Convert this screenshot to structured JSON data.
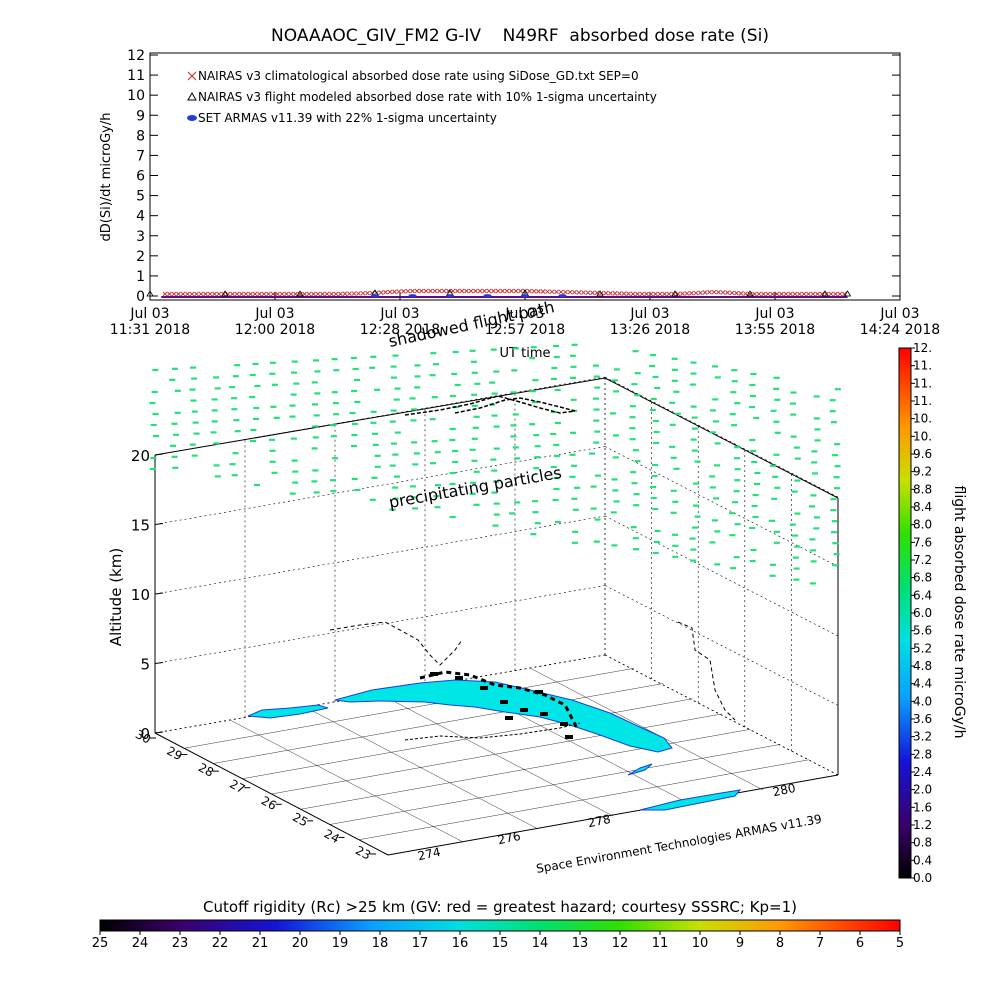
{
  "chart_data": [
    {
      "type": "scatter",
      "title": "NOAAAOC_GIV_FM2 G-IV    N49RF  absorbed dose rate (Si)",
      "ylabel": "dD(Si)/dt microGy/h",
      "xlabel": "UT time",
      "ylim": [
        0,
        12
      ],
      "yticks": [
        "0",
        "1",
        "2",
        "3",
        "4",
        "5",
        "6",
        "7",
        "8",
        "9",
        "10",
        "11",
        "12"
      ],
      "xticks": [
        {
          "top": "Jul 03",
          "bottom": "11:31 2018"
        },
        {
          "top": "Jul 03",
          "bottom": "12:00 2018"
        },
        {
          "top": "Jul 03",
          "bottom": "12:28 2018"
        },
        {
          "top": "Jul 03",
          "bottom": "12:57 2018"
        },
        {
          "top": "Jul 03",
          "bottom": "13:26 2018"
        },
        {
          "top": "Jul 03",
          "bottom": "13:55 2018"
        },
        {
          "top": "Jul 03",
          "bottom": "14:24 2018"
        }
      ],
      "legend": [
        {
          "label": "NAIRAS v3 climatological absorbed dose rate using SiDose_GD.txt SEP=0",
          "symbol": "x",
          "color": "#cc3333"
        },
        {
          "label": "NAIRAS v3 flight modeled absorbed dose rate with 10% 1-sigma uncertainty",
          "symbol": "triangle",
          "color": "#000000"
        },
        {
          "label": "SET ARMAS v11.39 with 22% 1-sigma uncertainty",
          "symbol": "dot",
          "color": "#1f3fd8"
        }
      ],
      "legend_position": "top-left",
      "series": [
        {
          "name": "NAIRAS v3 climatological absorbed dose rate using SiDose_GD.txt SEP=0",
          "x": [
            0.0,
            0.05,
            0.1,
            0.15,
            0.2,
            0.25,
            0.3,
            0.32,
            0.35,
            0.4,
            0.45,
            0.5,
            0.55,
            0.6,
            0.65,
            0.7,
            0.73,
            0.75,
            0.78,
            0.8,
            0.85,
            0.9,
            0.93
          ],
          "values": [
            0.1,
            0.1,
            0.1,
            0.1,
            0.1,
            0.1,
            0.15,
            0.2,
            0.25,
            0.25,
            0.25,
            0.25,
            0.2,
            0.15,
            0.1,
            0.1,
            0.15,
            0.2,
            0.15,
            0.1,
            0.1,
            0.1,
            0.1
          ]
        },
        {
          "name": "NAIRAS v3 flight modeled absorbed dose rate with 10% 1-sigma uncertainty",
          "x": [
            0.0,
            0.1,
            0.2,
            0.3,
            0.4,
            0.5,
            0.6,
            0.7,
            0.8,
            0.9,
            0.93
          ],
          "values": [
            0.05,
            0.05,
            0.05,
            0.1,
            0.1,
            0.1,
            0.05,
            0.05,
            0.05,
            0.05,
            0.05
          ]
        },
        {
          "name": "SET ARMAS v11.39 with 22% 1-sigma uncertainty",
          "x": [
            0.3,
            0.35,
            0.4,
            0.45,
            0.5,
            0.55
          ],
          "values": [
            0.02,
            0.02,
            0.02,
            0.02,
            0.02,
            0.02
          ]
        }
      ]
    },
    {
      "type": "scatter",
      "zlabel": "Altitude (km)",
      "zticks": [
        "0",
        "5",
        "10",
        "15",
        "20"
      ],
      "zlim": [
        0,
        22
      ],
      "lat_ticks": [
        "30",
        "29",
        "28",
        "27",
        "26",
        "25",
        "24",
        "23"
      ],
      "lon_ticks": [
        "274",
        "276",
        "278",
        "280"
      ],
      "annotations": [
        "precipitating particles",
        "shadowed flight path"
      ],
      "credit": "Space Environment Technologies ARMAS v11.39",
      "colorbar": {
        "label": "flight absorbed dose rate microGy/h",
        "ticks": [
          "0.0",
          "0.4",
          "0.8",
          "1.2",
          "1.6",
          "2.0",
          "2.4",
          "2.8",
          "3.2",
          "3.6",
          "4.0",
          "4.4",
          "4.8",
          "5.2",
          "5.6",
          "6.0",
          "6.4",
          "6.8",
          "7.2",
          "7.6",
          "8.0",
          "8.4",
          "8.8",
          "9.2",
          "9.6",
          "10.",
          "10.",
          "11.",
          "11.",
          "11.",
          "12."
        ]
      },
      "particle_dose_level": 5.8,
      "land_dose_level": 4.2
    },
    {
      "type": "heatmap",
      "title": "Cutoff rigidity (Rc) >25 km (GV: red = greatest hazard; courtesy SSSRC; Kp=1)",
      "ticks": [
        "25",
        "24",
        "23",
        "22",
        "21",
        "20",
        "19",
        "18",
        "17",
        "16",
        "15",
        "14",
        "13",
        "12",
        "11",
        "10",
        "9",
        "8",
        "7",
        "6",
        "5"
      ],
      "range": [
        25,
        5
      ]
    }
  ]
}
